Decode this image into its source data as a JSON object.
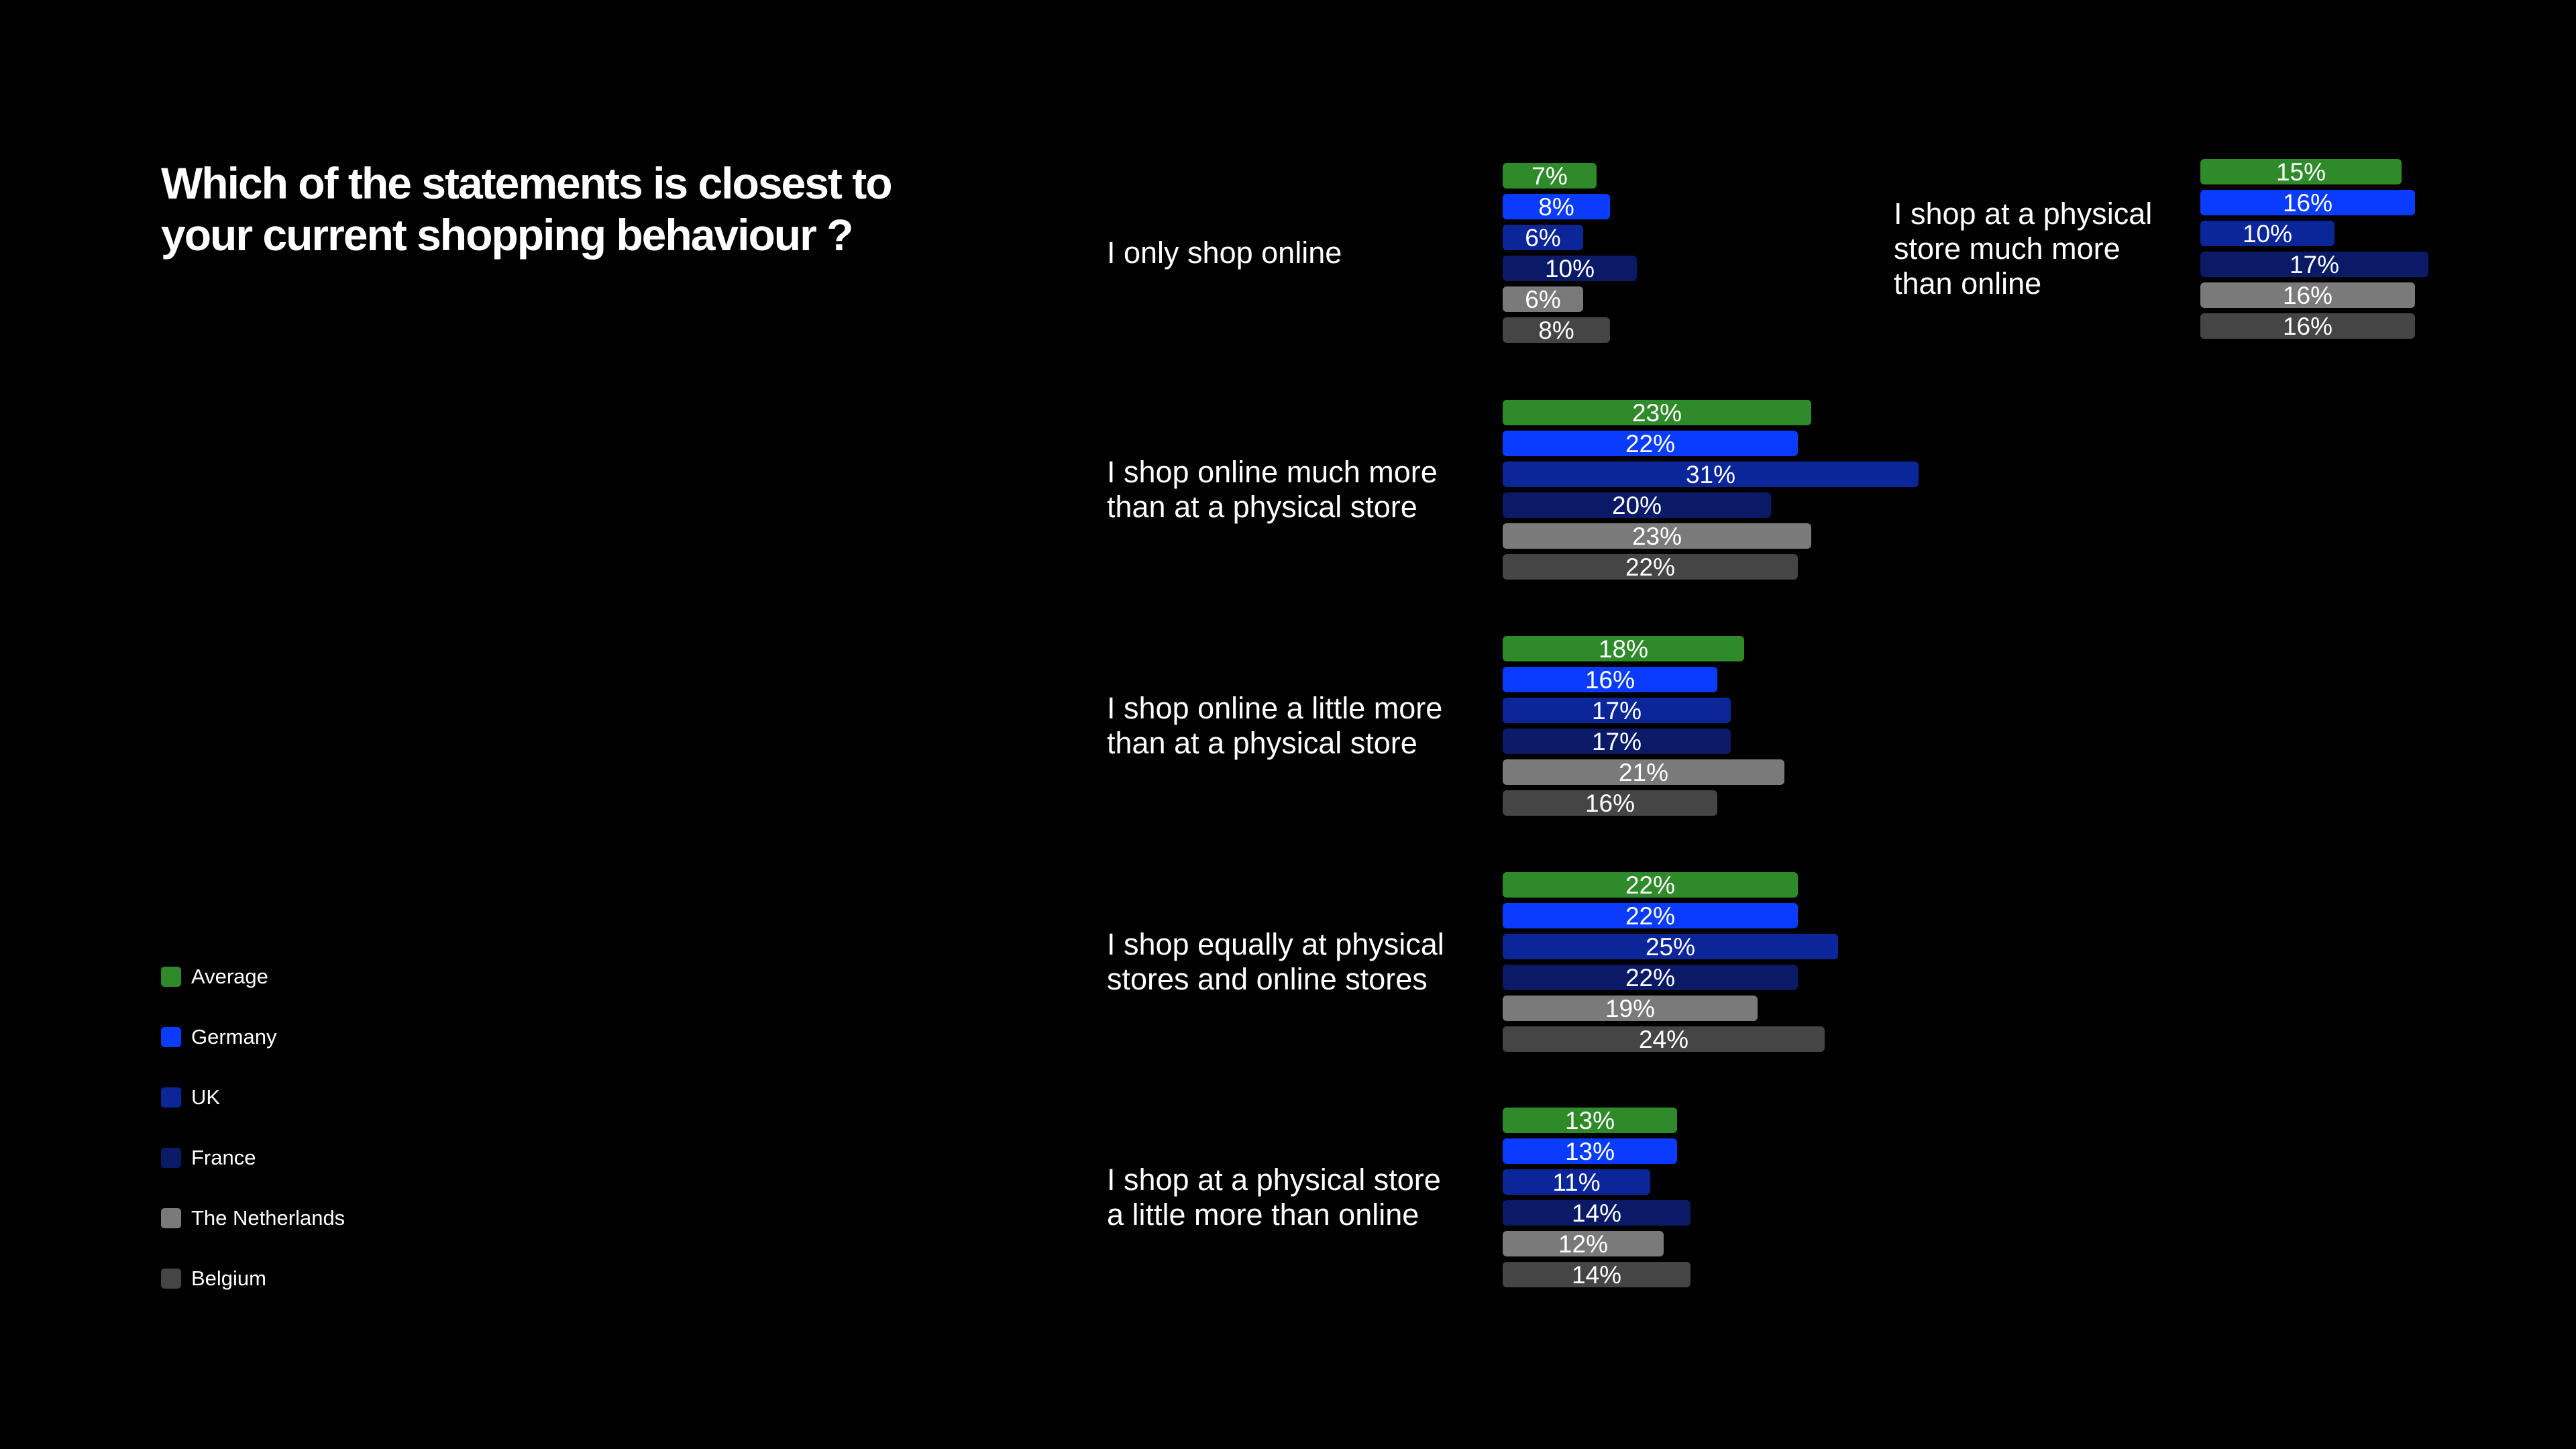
{
  "title_line1": "Which of the statements is closest to",
  "title_line2": "your current shopping behaviour ?",
  "value_suffix": "%",
  "legend": [
    {
      "label": "Average",
      "color": "#2f8a2a"
    },
    {
      "label": "Germany",
      "color": "#0a3cff"
    },
    {
      "label": "UK",
      "color": "#0b2699"
    },
    {
      "label": "France",
      "color": "#0a1a66"
    },
    {
      "label": "The Netherlands",
      "color": "#7a7a7a"
    },
    {
      "label": "Belgium",
      "color": "#454545"
    }
  ],
  "chart_data": {
    "type": "bar",
    "orientation": "horizontal",
    "value_unit": "%",
    "grid": false,
    "legend_position": "bottom-left",
    "categories": [
      "I only shop online",
      "I shop online much more than at a physical store",
      "I shop online a little more than at a physical store",
      "I shop equally at physical stores and online stores",
      "I shop at a physical store a little more than online",
      "I shop at a physical store much more than online"
    ],
    "category_lines": [
      [
        "I only shop online"
      ],
      [
        "I shop online much more",
        "than at a physical store"
      ],
      [
        "I shop online a little more",
        "than at a physical store"
      ],
      [
        "I shop equally at physical",
        "stores and online stores"
      ],
      [
        "I shop at a physical store",
        "a little more than online"
      ],
      [
        "I shop at a physical",
        "store much more",
        "than online"
      ]
    ],
    "series": [
      {
        "name": "Average",
        "color": "#2f8a2a",
        "values": [
          7,
          23,
          18,
          22,
          13,
          15
        ]
      },
      {
        "name": "Germany",
        "color": "#0a3cff",
        "values": [
          8,
          22,
          16,
          22,
          13,
          16
        ]
      },
      {
        "name": "UK",
        "color": "#0b2699",
        "values": [
          6,
          31,
          17,
          25,
          11,
          10
        ]
      },
      {
        "name": "France",
        "color": "#0a1a66",
        "values": [
          10,
          20,
          17,
          22,
          14,
          17
        ]
      },
      {
        "name": "The Netherlands",
        "color": "#7a7a7a",
        "values": [
          6,
          23,
          21,
          19,
          12,
          16
        ]
      },
      {
        "name": "Belgium",
        "color": "#454545",
        "values": [
          8,
          22,
          16,
          24,
          14,
          16
        ]
      }
    ]
  }
}
